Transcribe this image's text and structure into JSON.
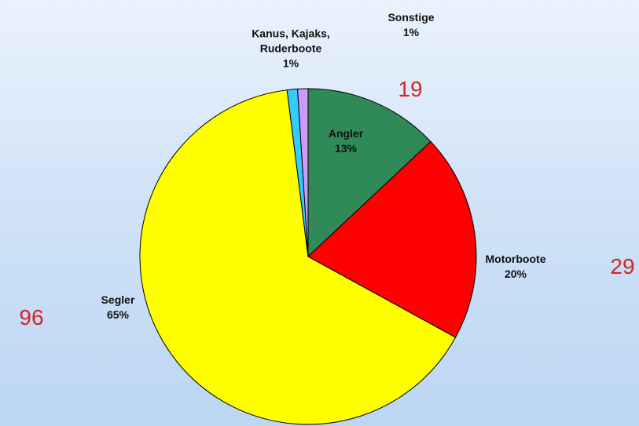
{
  "chart_data": {
    "type": "pie",
    "categories": [
      "Angler",
      "Motorboote",
      "Segler",
      "Kanus, Kajaks, Ruderboote",
      "Sonstige"
    ],
    "values": [
      13,
      20,
      65,
      1,
      1
    ],
    "value_labels": [
      "13%",
      "20%",
      "65%",
      "1%",
      "1%"
    ],
    "colors": [
      "#2f8a57",
      "#ff0000",
      "#ffff00",
      "#33ccff",
      "#cc99ff"
    ],
    "annotations": [
      19,
      29,
      96
    ]
  }
}
